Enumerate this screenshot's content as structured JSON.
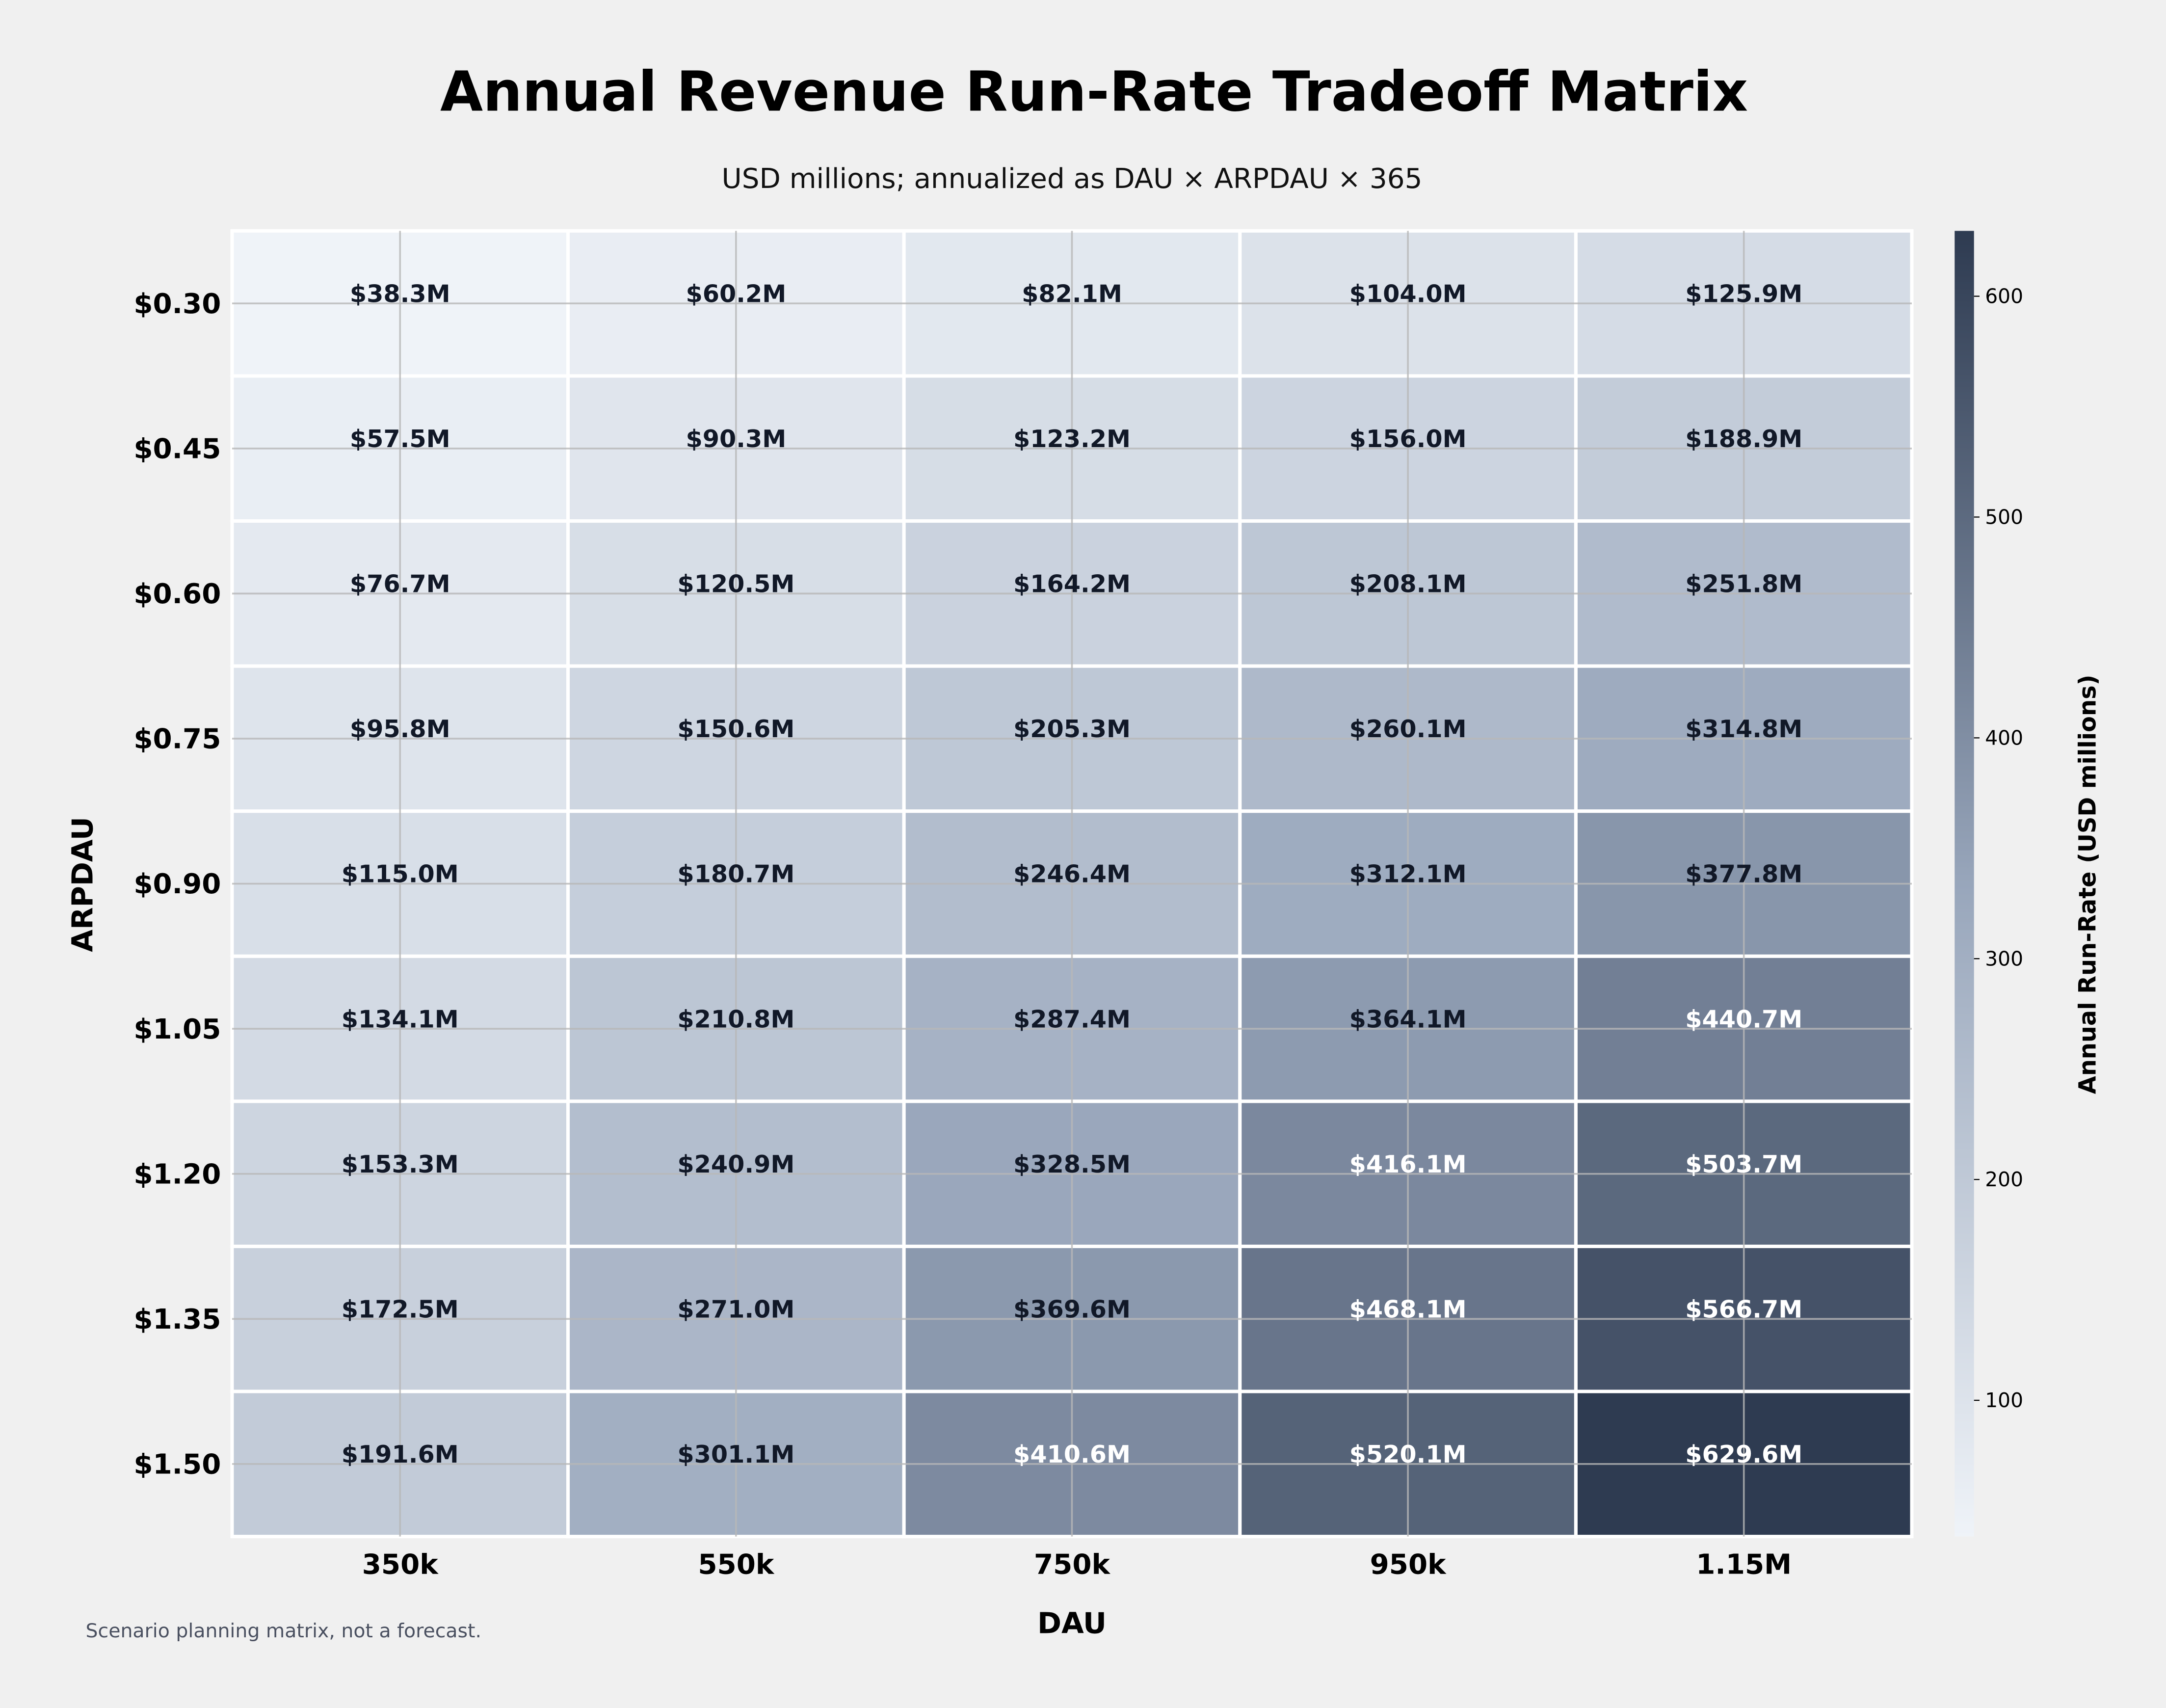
{
  "chart_data": {
    "type": "heatmap",
    "title": "Annual Revenue Run-Rate Tradeoff Matrix",
    "subtitle": "USD millions; annualized as DAU × ARPDAU × 365",
    "xlabel": "DAU",
    "ylabel": "ARPDAU",
    "x_categories": [
      "350k",
      "550k",
      "750k",
      "950k",
      "1.15M"
    ],
    "y_categories": [
      "$0.30",
      "$0.45",
      "$0.60",
      "$0.75",
      "$0.90",
      "$1.05",
      "$1.20",
      "$1.35",
      "$1.50"
    ],
    "values": [
      [
        38.3,
        60.2,
        82.1,
        104.0,
        125.9
      ],
      [
        57.5,
        90.3,
        123.2,
        156.0,
        188.9
      ],
      [
        76.7,
        120.5,
        164.2,
        208.1,
        251.8
      ],
      [
        95.8,
        150.6,
        205.3,
        260.1,
        314.8
      ],
      [
        115.0,
        180.7,
        246.4,
        312.1,
        377.8
      ],
      [
        134.1,
        210.8,
        287.4,
        364.1,
        440.7
      ],
      [
        153.3,
        240.9,
        328.5,
        416.1,
        503.7
      ],
      [
        172.5,
        271.0,
        369.6,
        468.1,
        566.7
      ],
      [
        191.6,
        301.1,
        410.6,
        520.1,
        629.6
      ]
    ],
    "cell_labels": [
      [
        "$38.3M",
        "$60.2M",
        "$82.1M",
        "$104.0M",
        "$125.9M"
      ],
      [
        "$57.5M",
        "$90.3M",
        "$123.2M",
        "$156.0M",
        "$188.9M"
      ],
      [
        "$76.7M",
        "$120.5M",
        "$164.2M",
        "$208.1M",
        "$251.8M"
      ],
      [
        "$95.8M",
        "$150.6M",
        "$205.3M",
        "$260.1M",
        "$314.8M"
      ],
      [
        "$115.0M",
        "$180.7M",
        "$246.4M",
        "$312.1M",
        "$377.8M"
      ],
      [
        "$134.1M",
        "$210.8M",
        "$287.4M",
        "$364.1M",
        "$440.7M"
      ],
      [
        "$153.3M",
        "$240.9M",
        "$328.5M",
        "$416.1M",
        "$503.7M"
      ],
      [
        "$172.5M",
        "$271.0M",
        "$369.6M",
        "$468.1M",
        "$566.7M"
      ],
      [
        "$191.6M",
        "$301.1M",
        "$410.6M",
        "$520.1M",
        "$629.6M"
      ]
    ],
    "colorbar": {
      "label": "Annual Run-Rate (USD millions)",
      "range": [
        38.3,
        629.6
      ],
      "ticks": [
        100,
        200,
        300,
        400,
        500,
        600
      ],
      "tick_labels": [
        "100",
        "200",
        "300",
        "400",
        "500",
        "600"
      ],
      "colors": [
        "#eff3f8",
        "#98a6bb",
        "#2e3b51"
      ]
    },
    "grid": true,
    "footnote": "Scenario planning matrix, not a forecast."
  }
}
